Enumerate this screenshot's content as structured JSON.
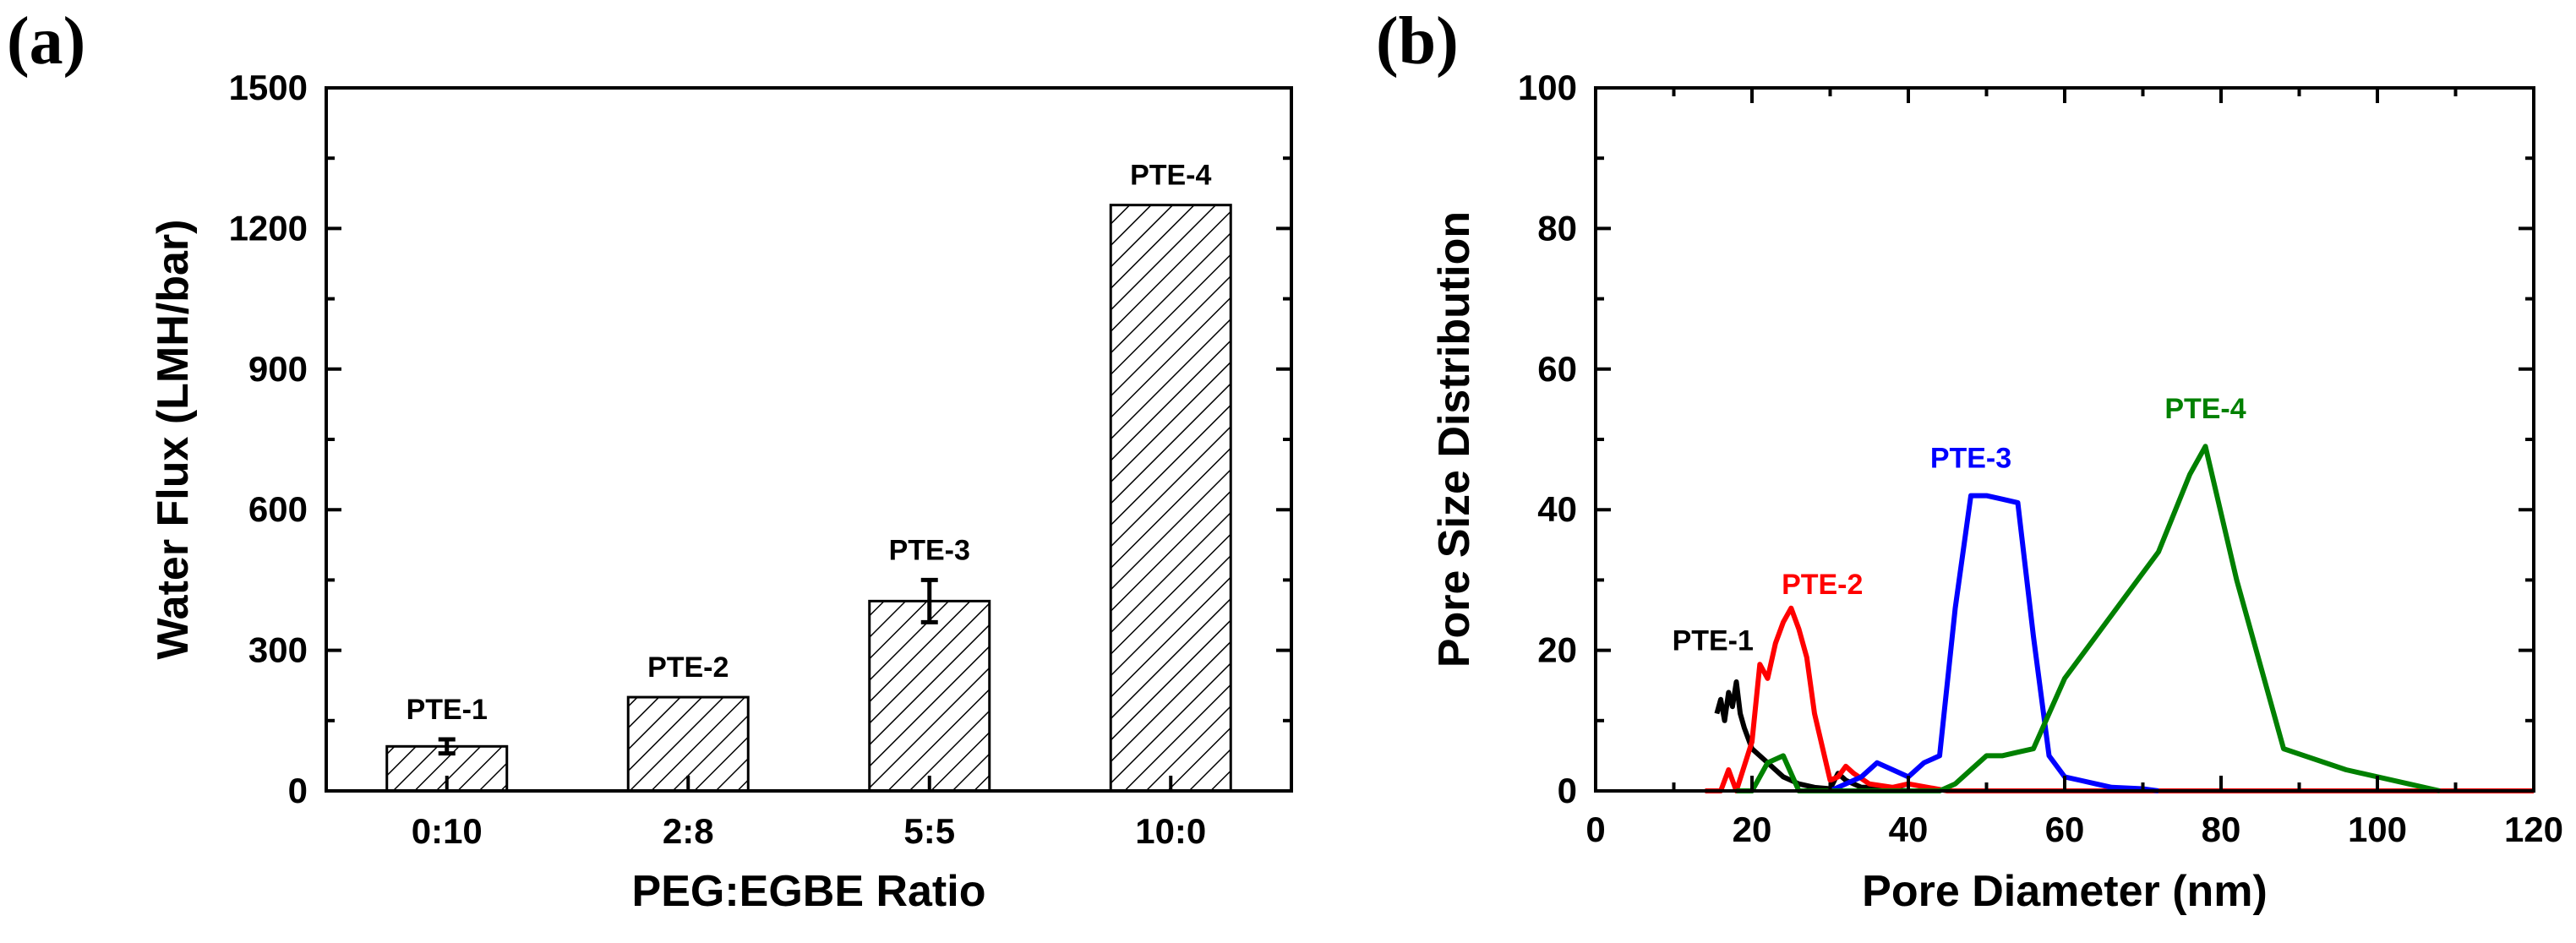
{
  "chart_data": [
    {
      "panel": "(a)",
      "type": "bar",
      "title": "",
      "xlabel": "PEG:EGBE Ratio",
      "ylabel": "Water Flux (LMH/bar)",
      "ylim": [
        0,
        1500
      ],
      "yticks": [
        0,
        300,
        600,
        900,
        1200,
        1500
      ],
      "categories": [
        "0:10",
        "2:8",
        "5:5",
        "10:0"
      ],
      "values": [
        95,
        200,
        405,
        1250
      ],
      "errors": [
        15,
        0,
        45,
        0
      ],
      "bar_labels": [
        "PTE-1",
        "PTE-2",
        "PTE-3",
        "PTE-4"
      ],
      "fill": "diagonal-hatch"
    },
    {
      "panel": "(b)",
      "type": "line",
      "title": "",
      "xlabel": "Pore Diameter (nm)",
      "ylabel": "Pore Size Distribution",
      "xlim": [
        0,
        120
      ],
      "ylim": [
        0,
        100
      ],
      "xticks": [
        0,
        20,
        40,
        60,
        80,
        100,
        120
      ],
      "yticks": [
        0,
        20,
        40,
        60,
        80,
        100
      ],
      "series": [
        {
          "name": "PTE-1",
          "color": "#000000",
          "label_at": [
            15,
            20
          ],
          "x": [
            15.5,
            16,
            16.5,
            17,
            17.5,
            18,
            18.5,
            19,
            20,
            22,
            24,
            26,
            28,
            30,
            31,
            32,
            34,
            36,
            38,
            40
          ],
          "y": [
            11,
            13,
            10,
            14,
            12,
            15.5,
            11,
            9,
            6,
            4,
            2,
            1,
            0.5,
            0.3,
            2.5,
            1.5,
            0.5,
            0.5,
            0.2,
            0
          ]
        },
        {
          "name": "PTE-2",
          "color": "#ff0000",
          "label_at": [
            29,
            28
          ],
          "x": [
            14,
            16,
            17,
            18,
            20,
            21,
            22,
            23,
            24,
            25,
            26,
            27,
            28,
            30,
            31,
            32,
            33,
            35,
            38,
            40,
            45,
            50,
            60,
            80,
            100,
            120
          ],
          "y": [
            0,
            0,
            3,
            0,
            7,
            18,
            16,
            21,
            24,
            26,
            23,
            19,
            11,
            1.5,
            2,
            3.5,
            2.5,
            1,
            0.5,
            1,
            0,
            0,
            0,
            0,
            0,
            0
          ]
        },
        {
          "name": "PTE-3",
          "color": "#0000ff",
          "label_at": [
            48,
            46
          ],
          "x": [
            30,
            32,
            34,
            36,
            38,
            40,
            42,
            44,
            46,
            48,
            50,
            52,
            54,
            56,
            58,
            60,
            62,
            64,
            66,
            70,
            72
          ],
          "y": [
            0,
            1,
            2,
            4,
            3,
            2,
            4,
            5,
            26,
            42,
            42,
            41.5,
            41,
            22,
            5,
            2,
            1.5,
            1,
            0.5,
            0.3,
            0
          ]
        },
        {
          "name": "PTE-4",
          "color": "#008000",
          "label_at": [
            78,
            53
          ],
          "x": [
            18,
            20,
            22,
            24,
            26,
            28,
            44,
            46,
            48,
            50,
            52,
            54,
            56,
            58,
            60,
            64,
            68,
            72,
            76,
            78,
            82,
            88,
            96,
            104,
            108
          ],
          "y": [
            0,
            0,
            4,
            5,
            0,
            0,
            0,
            1,
            3,
            5,
            5,
            5.5,
            6,
            11,
            16,
            22,
            28,
            34,
            45,
            49,
            30,
            6,
            3,
            1,
            0
          ]
        }
      ]
    }
  ]
}
